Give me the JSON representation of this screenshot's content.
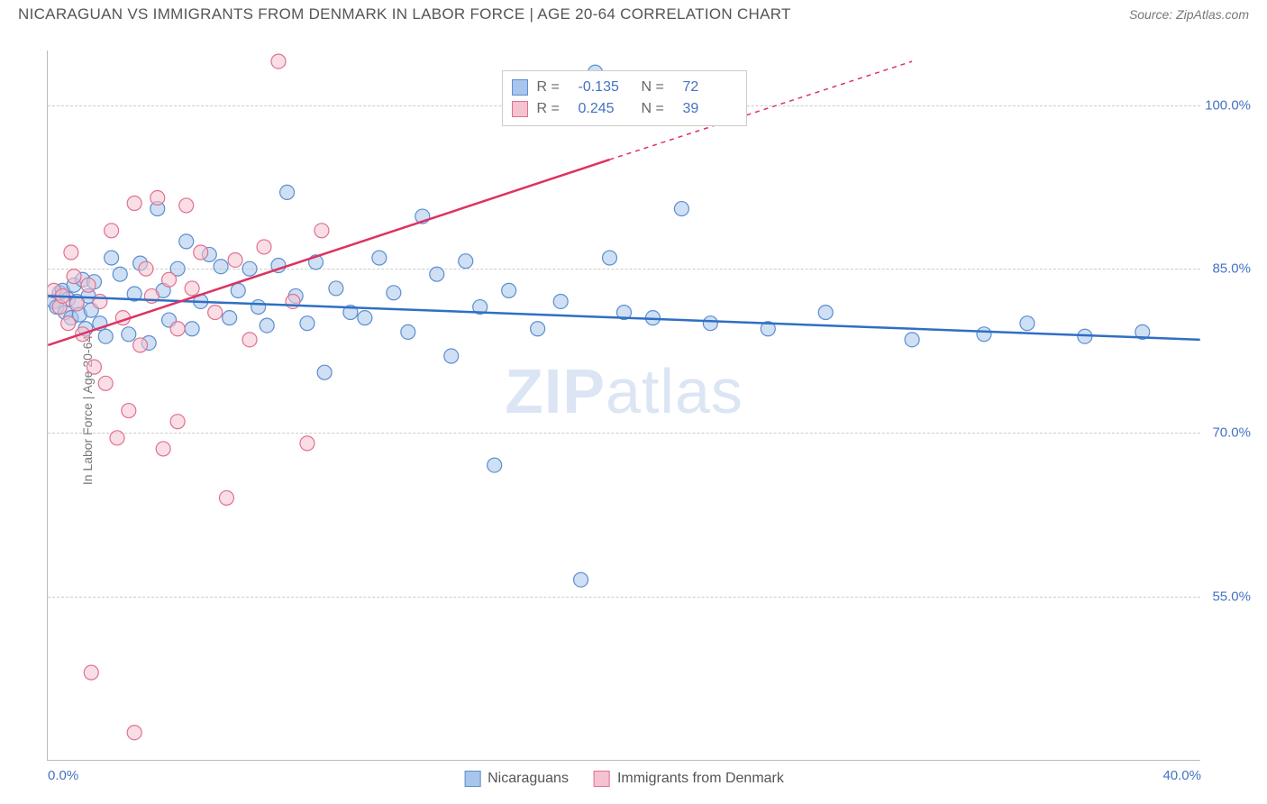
{
  "header": {
    "title": "NICARAGUAN VS IMMIGRANTS FROM DENMARK IN LABOR FORCE | AGE 20-64 CORRELATION CHART",
    "source": "Source: ZipAtlas.com"
  },
  "chart": {
    "type": "scatter",
    "y_axis_label": "In Labor Force | Age 20-64",
    "watermark": "ZIPatlas",
    "xlim": [
      0,
      40
    ],
    "ylim": [
      40,
      105
    ],
    "x_ticks": [
      {
        "pos": 0,
        "label": "0.0%",
        "align": "left"
      },
      {
        "pos": 40,
        "label": "40.0%",
        "align": "right"
      }
    ],
    "y_ticks": [
      {
        "pos": 55,
        "label": "55.0%"
      },
      {
        "pos": 70,
        "label": "70.0%"
      },
      {
        "pos": 85,
        "label": "85.0%"
      },
      {
        "pos": 100,
        "label": "100.0%"
      }
    ],
    "grid_color": "#cccccc",
    "background_color": "#ffffff",
    "axis_color": "#bbbbbb",
    "tick_label_color": "#4472c4",
    "series": [
      {
        "name": "Nicaraguans",
        "fill": "#a8c5eb",
        "stroke": "#5b8ed1",
        "fill_opacity": 0.55,
        "marker_radius": 8,
        "trend": {
          "x1": 0,
          "y1": 82.5,
          "x2": 40,
          "y2": 78.5,
          "color": "#2f6fc4",
          "width": 2.5,
          "dash": "none"
        },
        "points": [
          [
            0.2,
            82
          ],
          [
            0.3,
            81.5
          ],
          [
            0.4,
            82.8
          ],
          [
            0.5,
            83
          ],
          [
            0.6,
            81
          ],
          [
            0.7,
            82.2
          ],
          [
            0.8,
            80.5
          ],
          [
            0.9,
            83.5
          ],
          [
            1.0,
            82
          ],
          [
            1.1,
            80.8
          ],
          [
            1.2,
            84
          ],
          [
            1.3,
            79.5
          ],
          [
            1.4,
            82.5
          ],
          [
            1.5,
            81.2
          ],
          [
            1.6,
            83.8
          ],
          [
            1.8,
            80
          ],
          [
            2.0,
            78.8
          ],
          [
            2.2,
            86
          ],
          [
            2.5,
            84.5
          ],
          [
            2.8,
            79
          ],
          [
            3.0,
            82.7
          ],
          [
            3.2,
            85.5
          ],
          [
            3.5,
            78.2
          ],
          [
            3.8,
            90.5
          ],
          [
            4.0,
            83
          ],
          [
            4.2,
            80.3
          ],
          [
            4.5,
            85
          ],
          [
            4.8,
            87.5
          ],
          [
            5.0,
            79.5
          ],
          [
            5.3,
            82
          ],
          [
            5.6,
            86.3
          ],
          [
            6.0,
            85.2
          ],
          [
            6.3,
            80.5
          ],
          [
            6.6,
            83
          ],
          [
            7.0,
            85
          ],
          [
            7.3,
            81.5
          ],
          [
            7.6,
            79.8
          ],
          [
            8.0,
            85.3
          ],
          [
            8.3,
            92
          ],
          [
            8.6,
            82.5
          ],
          [
            9.0,
            80
          ],
          [
            9.3,
            85.6
          ],
          [
            9.6,
            75.5
          ],
          [
            10.0,
            83.2
          ],
          [
            10.5,
            81
          ],
          [
            11.0,
            80.5
          ],
          [
            11.5,
            86
          ],
          [
            12.0,
            82.8
          ],
          [
            12.5,
            79.2
          ],
          [
            13.0,
            89.8
          ],
          [
            13.5,
            84.5
          ],
          [
            14.0,
            77
          ],
          [
            14.5,
            85.7
          ],
          [
            15.0,
            81.5
          ],
          [
            15.5,
            67
          ],
          [
            16.0,
            83
          ],
          [
            17.0,
            79.5
          ],
          [
            17.8,
            82
          ],
          [
            18.5,
            56.5
          ],
          [
            19.0,
            103
          ],
          [
            19.5,
            86
          ],
          [
            20.0,
            81
          ],
          [
            21.0,
            80.5
          ],
          [
            22.0,
            90.5
          ],
          [
            23.0,
            80
          ],
          [
            25.0,
            79.5
          ],
          [
            27.0,
            81
          ],
          [
            30.0,
            78.5
          ],
          [
            32.5,
            79
          ],
          [
            34.0,
            80
          ],
          [
            36.0,
            78.8
          ],
          [
            38.0,
            79.2
          ]
        ]
      },
      {
        "name": "Immigrants from Denmark",
        "fill": "#f4c3cf",
        "stroke": "#e1708f",
        "fill_opacity": 0.55,
        "marker_radius": 8,
        "trend": {
          "x1": 0,
          "y1": 78,
          "x2": 19.5,
          "y2": 95,
          "color": "#dd3262",
          "width": 2.5,
          "dash": "none"
        },
        "trend_ext": {
          "x1": 19.5,
          "y1": 95,
          "x2": 30,
          "y2": 104,
          "color": "#dd3262",
          "width": 1.5,
          "dash": "5,5"
        },
        "points": [
          [
            0.2,
            83
          ],
          [
            0.4,
            81.5
          ],
          [
            0.5,
            82.5
          ],
          [
            0.7,
            80
          ],
          [
            0.9,
            84.3
          ],
          [
            1.0,
            81.8
          ],
          [
            1.2,
            79
          ],
          [
            1.4,
            83.5
          ],
          [
            1.6,
            76
          ],
          [
            1.8,
            82
          ],
          [
            2.0,
            74.5
          ],
          [
            2.2,
            88.5
          ],
          [
            2.4,
            69.5
          ],
          [
            2.6,
            80.5
          ],
          [
            2.8,
            72
          ],
          [
            3.0,
            91
          ],
          [
            3.2,
            78
          ],
          [
            3.4,
            85
          ],
          [
            3.6,
            82.5
          ],
          [
            3.8,
            91.5
          ],
          [
            4.0,
            68.5
          ],
          [
            4.2,
            84
          ],
          [
            4.5,
            79.5
          ],
          [
            4.8,
            90.8
          ],
          [
            5.0,
            83.2
          ],
          [
            5.3,
            86.5
          ],
          [
            5.8,
            81
          ],
          [
            6.2,
            64
          ],
          [
            6.5,
            85.8
          ],
          [
            7.0,
            78.5
          ],
          [
            7.5,
            87
          ],
          [
            8.0,
            104
          ],
          [
            8.5,
            82
          ],
          [
            9.0,
            69
          ],
          [
            9.5,
            88.5
          ],
          [
            1.5,
            48
          ],
          [
            3.0,
            42.5
          ],
          [
            4.5,
            71
          ],
          [
            0.8,
            86.5
          ]
        ]
      }
    ],
    "legend_top": {
      "rows": [
        {
          "swatch_fill": "#a8c5eb",
          "swatch_stroke": "#5b8ed1",
          "r_label": "R =",
          "r_value": "-0.135",
          "n_label": "N =",
          "n_value": "72"
        },
        {
          "swatch_fill": "#f4c3cf",
          "swatch_stroke": "#e1708f",
          "r_label": "R =",
          "r_value": "0.245",
          "n_label": "N =",
          "n_value": "39"
        }
      ]
    },
    "legend_bottom": {
      "items": [
        {
          "swatch_fill": "#a8c5eb",
          "swatch_stroke": "#5b8ed1",
          "label": "Nicaraguans"
        },
        {
          "swatch_fill": "#f4c3cf",
          "swatch_stroke": "#e1708f",
          "label": "Immigrants from Denmark"
        }
      ]
    }
  }
}
